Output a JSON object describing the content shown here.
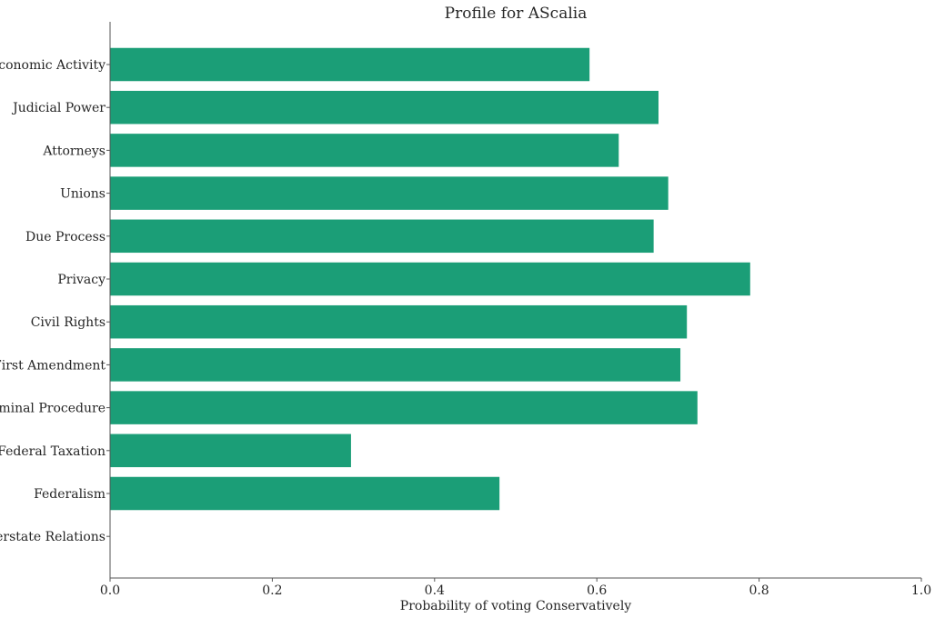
{
  "chart_data": {
    "type": "bar",
    "orientation": "horizontal",
    "title": "Profile for AScalia",
    "xlabel": "Probability of voting Conservatively",
    "ylabel": "",
    "xlim": [
      0.0,
      1.0
    ],
    "xticks": [
      "0.0",
      "0.2",
      "0.4",
      "0.6",
      "0.8",
      "1.0"
    ],
    "grid": false,
    "categories": [
      "Economic Activity",
      "Judicial Power",
      "Attorneys",
      "Unions",
      "Due Process",
      "Privacy",
      "Civil Rights",
      "First Amendment",
      "Criminal Procedure",
      "Federal Taxation",
      "Federalism",
      "Interstate Relations"
    ],
    "values": [
      0.591,
      0.676,
      0.627,
      0.688,
      0.67,
      0.789,
      0.711,
      0.703,
      0.724,
      0.297,
      0.48,
      0.0
    ],
    "bar_color": "#1b9e77"
  }
}
